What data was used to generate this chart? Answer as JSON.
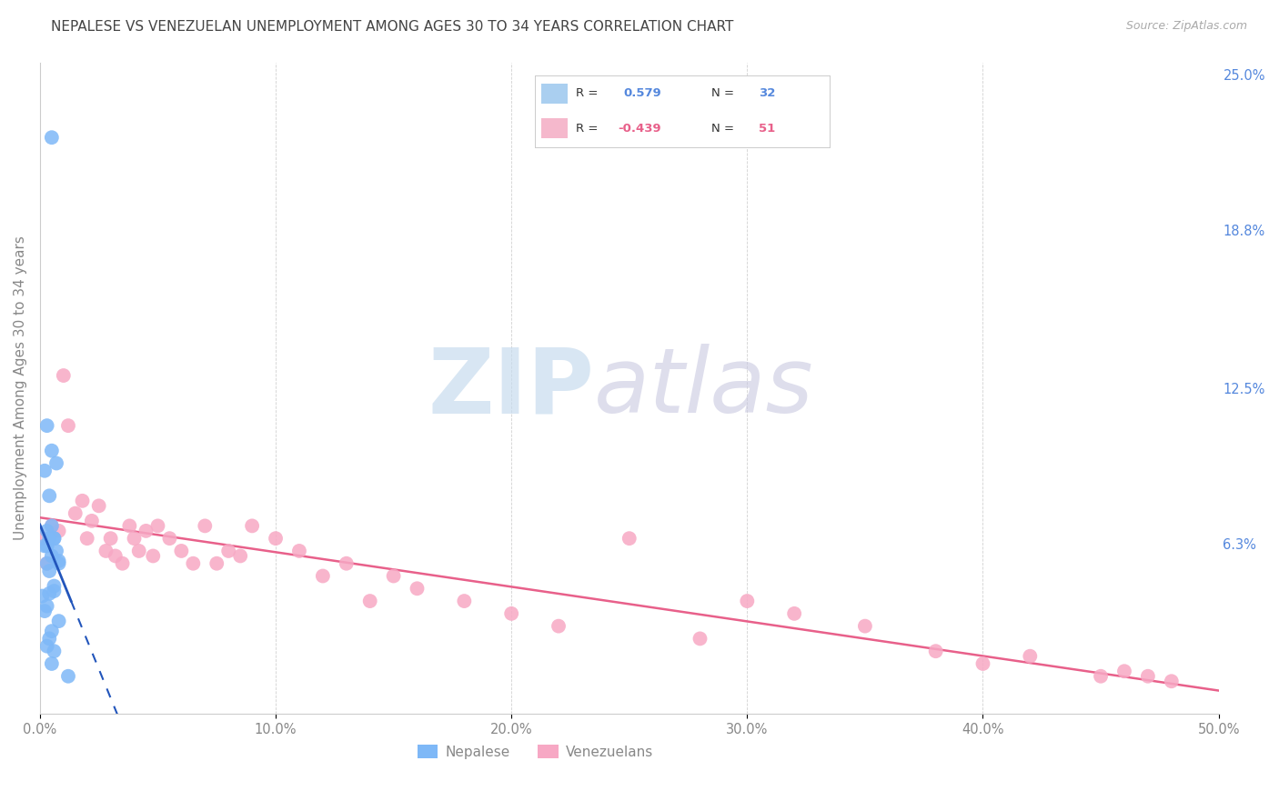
{
  "title": "NEPALESE VS VENEZUELAN UNEMPLOYMENT AMONG AGES 30 TO 34 YEARS CORRELATION CHART",
  "source": "Source: ZipAtlas.com",
  "ylabel": "Unemployment Among Ages 30 to 34 years",
  "xlim": [
    0,
    0.5
  ],
  "ylim": [
    -0.005,
    0.255
  ],
  "xtick_values": [
    0.0,
    0.1,
    0.2,
    0.3,
    0.4,
    0.5
  ],
  "xtick_labels": [
    "0.0%",
    "10.0%",
    "20.0%",
    "30.0%",
    "40.0%",
    "50.0%"
  ],
  "ytick_right_values": [
    0.25,
    0.188,
    0.125,
    0.063
  ],
  "ytick_right_labels": [
    "25.0%",
    "18.8%",
    "12.5%",
    "6.3%"
  ],
  "nepalese_R": "0.579",
  "nepalese_N": "32",
  "venezuelan_R": "-0.439",
  "venezuelan_N": "51",
  "nepalese_scatter_color": "#7EB8F7",
  "venezuelan_scatter_color": "#F7A8C4",
  "nepalese_line_color": "#2255BB",
  "venezuelan_line_color": "#E8608A",
  "legend_box_nepalese_color": "#AACFF0",
  "legend_box_venezuelan_color": "#F5B8CC",
  "grid_color": "#CCCCCC",
  "watermark_zip_color": "#C8DCEE",
  "watermark_atlas_color": "#C8C8E0",
  "title_color": "#444444",
  "source_color": "#AAAAAA",
  "ylabel_color": "#888888",
  "tick_label_color": "#888888",
  "right_tick_color": "#5588DD",
  "nep_x": [
    0.005,
    0.008,
    0.003,
    0.006,
    0.004,
    0.002,
    0.007,
    0.005,
    0.003,
    0.001,
    0.006,
    0.004,
    0.008,
    0.003,
    0.005,
    0.007,
    0.002,
    0.004,
    0.006,
    0.003,
    0.005,
    0.004,
    0.006,
    0.003,
    0.002,
    0.008,
    0.005,
    0.004,
    0.003,
    0.006,
    0.005,
    0.012
  ],
  "nep_y": [
    0.225,
    0.055,
    0.062,
    0.065,
    0.082,
    0.092,
    0.095,
    0.1,
    0.11,
    0.042,
    0.046,
    0.052,
    0.056,
    0.055,
    0.058,
    0.06,
    0.062,
    0.065,
    0.065,
    0.068,
    0.07,
    0.043,
    0.044,
    0.038,
    0.036,
    0.032,
    0.028,
    0.025,
    0.022,
    0.02,
    0.015,
    0.01
  ],
  "ven_x": [
    0.001,
    0.003,
    0.005,
    0.008,
    0.01,
    0.012,
    0.015,
    0.018,
    0.02,
    0.022,
    0.025,
    0.028,
    0.03,
    0.032,
    0.035,
    0.038,
    0.04,
    0.042,
    0.045,
    0.048,
    0.05,
    0.055,
    0.06,
    0.065,
    0.07,
    0.075,
    0.08,
    0.085,
    0.09,
    0.1,
    0.11,
    0.12,
    0.13,
    0.14,
    0.15,
    0.16,
    0.18,
    0.2,
    0.22,
    0.25,
    0.28,
    0.3,
    0.32,
    0.35,
    0.38,
    0.4,
    0.42,
    0.45,
    0.46,
    0.47,
    0.48
  ],
  "ven_y": [
    0.065,
    0.055,
    0.07,
    0.068,
    0.13,
    0.11,
    0.075,
    0.08,
    0.065,
    0.072,
    0.078,
    0.06,
    0.065,
    0.058,
    0.055,
    0.07,
    0.065,
    0.06,
    0.068,
    0.058,
    0.07,
    0.065,
    0.06,
    0.055,
    0.07,
    0.055,
    0.06,
    0.058,
    0.07,
    0.065,
    0.06,
    0.05,
    0.055,
    0.04,
    0.05,
    0.045,
    0.04,
    0.035,
    0.03,
    0.065,
    0.025,
    0.04,
    0.035,
    0.03,
    0.02,
    0.015,
    0.018,
    0.01,
    0.012,
    0.01,
    0.008
  ]
}
